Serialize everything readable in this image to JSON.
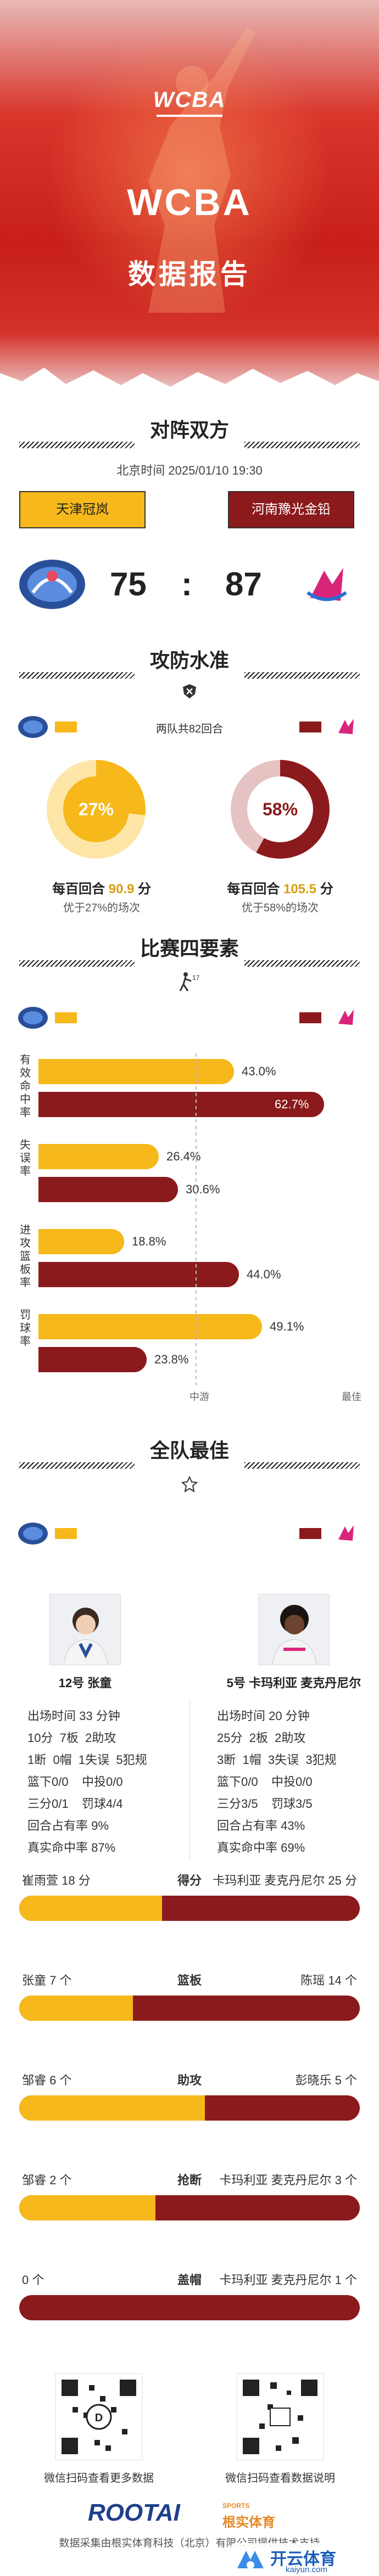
{
  "header": {
    "logo": "WCBA",
    "title": "WCBA",
    "report": "数据报告"
  },
  "matchup": {
    "section_title": "对阵双方",
    "time": "北京时间 2025/01/10 19:30",
    "team_a": "天津冠岚",
    "team_b": "河南豫光金铅",
    "score_a": "75",
    "score_sep": ":",
    "score_b": "87"
  },
  "offense": {
    "section_title": "攻防水准",
    "rounds": "两队共82回合",
    "team_a_pct": "27%",
    "team_b_pct": "58%",
    "team_a_pct_value": 0.27,
    "team_b_pct_value": 0.58,
    "team_a_pts_label": "每百回合",
    "team_a_pts": "90.9",
    "team_a_unit": "分",
    "team_a_better": "优于27%的场次",
    "team_b_pts_label": "每百回合",
    "team_b_pts": "105.5",
    "team_b_unit": "分",
    "team_b_better": "优于58%的场次"
  },
  "four_factors": {
    "section_title": "比赛四要素",
    "rows": [
      {
        "label": "有效命中率",
        "a": "43.0%",
        "b": "62.7%",
        "a_value": 0.43,
        "b_value": 0.627
      },
      {
        "label": "失误率",
        "a": "26.4%",
        "b": "30.6%",
        "a_value": 0.264,
        "b_value": 0.306
      },
      {
        "label": "进攻篮板率",
        "a": "18.8%",
        "b": "44.0%",
        "a_value": 0.188,
        "b_value": 0.44
      },
      {
        "label": "罚球率",
        "a": "49.1%",
        "b": "23.8%",
        "a_value": 0.491,
        "b_value": 0.238
      }
    ],
    "scale_mid": "中游",
    "scale_best": "最佳"
  },
  "best": {
    "section_title": "全队最佳",
    "player_a": {
      "name": "12号 张童",
      "lines": [
        "出场时间 33 分钟",
        "10分  7板  2助攻",
        "1断  0帽  1失误  5犯规",
        "篮下0/0    中投0/0",
        "三分0/1    罚球4/4",
        "回合占有率 9%",
        "真实命中率 87%"
      ]
    },
    "player_b": {
      "name": "5号 卡玛利亚 麦克丹尼尔",
      "lines": [
        "出场时间 20 分钟",
        "25分  2板  2助攻",
        "3断  1帽  3失误  3犯规",
        "篮下0/0    中投0/0",
        "三分3/5    罚球3/5",
        "回合占有率 43%",
        "真实命中率 69%"
      ]
    },
    "categories": [
      {
        "name": "得分",
        "left": "崔雨萱 18 分",
        "right": "卡玛利亚 麦克丹尼尔 25 分",
        "a_value": 18,
        "b_value": 25
      },
      {
        "name": "篮板",
        "left": "张童 7 个",
        "right": "陈瑶 14 个",
        "a_value": 7,
        "b_value": 14
      },
      {
        "name": "助攻",
        "left": "邹睿 6 个",
        "right": "彭晓乐 5 个",
        "a_value": 6,
        "b_value": 5
      },
      {
        "name": "抢断",
        "left": "邹睿 2 个",
        "right": "卡玛利亚 麦克丹尼尔 3 个",
        "a_value": 2,
        "b_value": 3
      },
      {
        "name": "盖帽",
        "left": "0 个",
        "right": "卡玛利亚 麦克丹尼尔 1 个",
        "a_value": 0,
        "b_value": 1
      }
    ]
  },
  "footer": {
    "qr_left_caption": "微信扫码查看更多数据",
    "qr_right_caption": "微信扫码查看数据说明",
    "brand": "ROOTAI",
    "brand_cn": "根实体育",
    "brand_sports": "SPORTS",
    "credit": "数据采集由根实体育科技（北京）有限公司提供技术支持",
    "watermark": "开云体育",
    "watermark_url": "kaiyun.com"
  },
  "colors": {
    "team_a": "#f6b81a",
    "team_b": "#8b1a1c",
    "accent": "#c81f1a"
  }
}
